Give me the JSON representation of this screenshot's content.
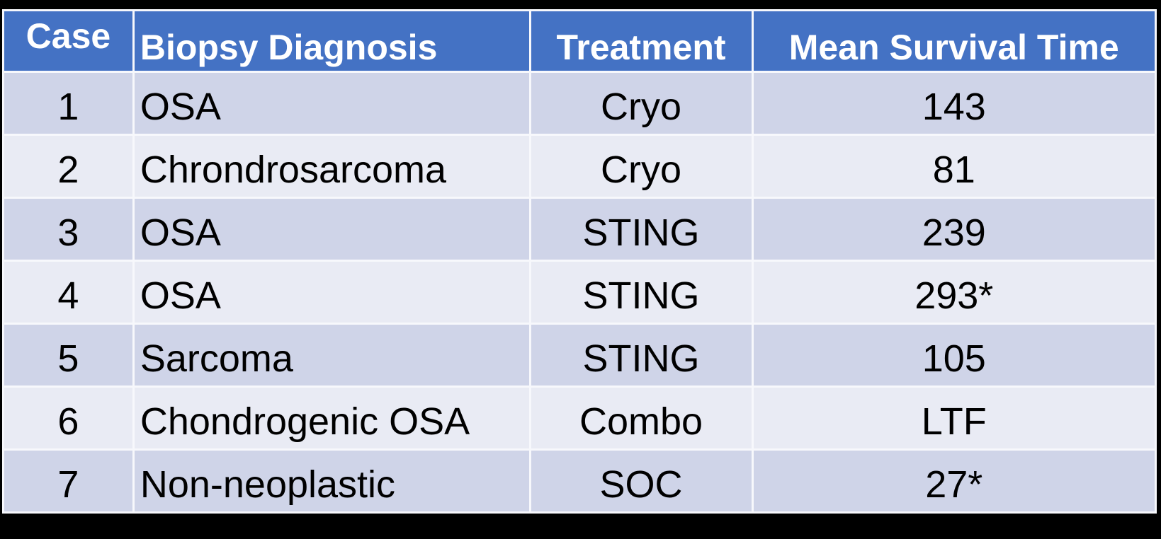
{
  "colors": {
    "frame_bg": "#000000",
    "header_bg": "#4472C4",
    "header_text": "#FFFFFF",
    "row_odd_bg": "#CFD4E8",
    "row_even_bg": "#E9EBF4",
    "grid_line": "#F7F8FC",
    "body_text": "#000000"
  },
  "chart_data": {
    "type": "table",
    "columns": [
      "Case",
      "Biopsy Diagnosis",
      "Treatment",
      "Mean Survival Time"
    ],
    "rows": [
      [
        "1",
        "OSA",
        "Cryo",
        "143"
      ],
      [
        "2",
        "Chrondrosarcoma",
        "Cryo",
        "81"
      ],
      [
        "3",
        "OSA",
        "STING",
        "239"
      ],
      [
        "4",
        "OSA",
        "STING",
        "293*"
      ],
      [
        "5",
        "Sarcoma",
        "STING",
        "105"
      ],
      [
        "6",
        "Chondrogenic OSA",
        "Combo",
        "LTF"
      ],
      [
        "7",
        "Non-neoplastic",
        "SOC",
        "27*"
      ]
    ]
  }
}
